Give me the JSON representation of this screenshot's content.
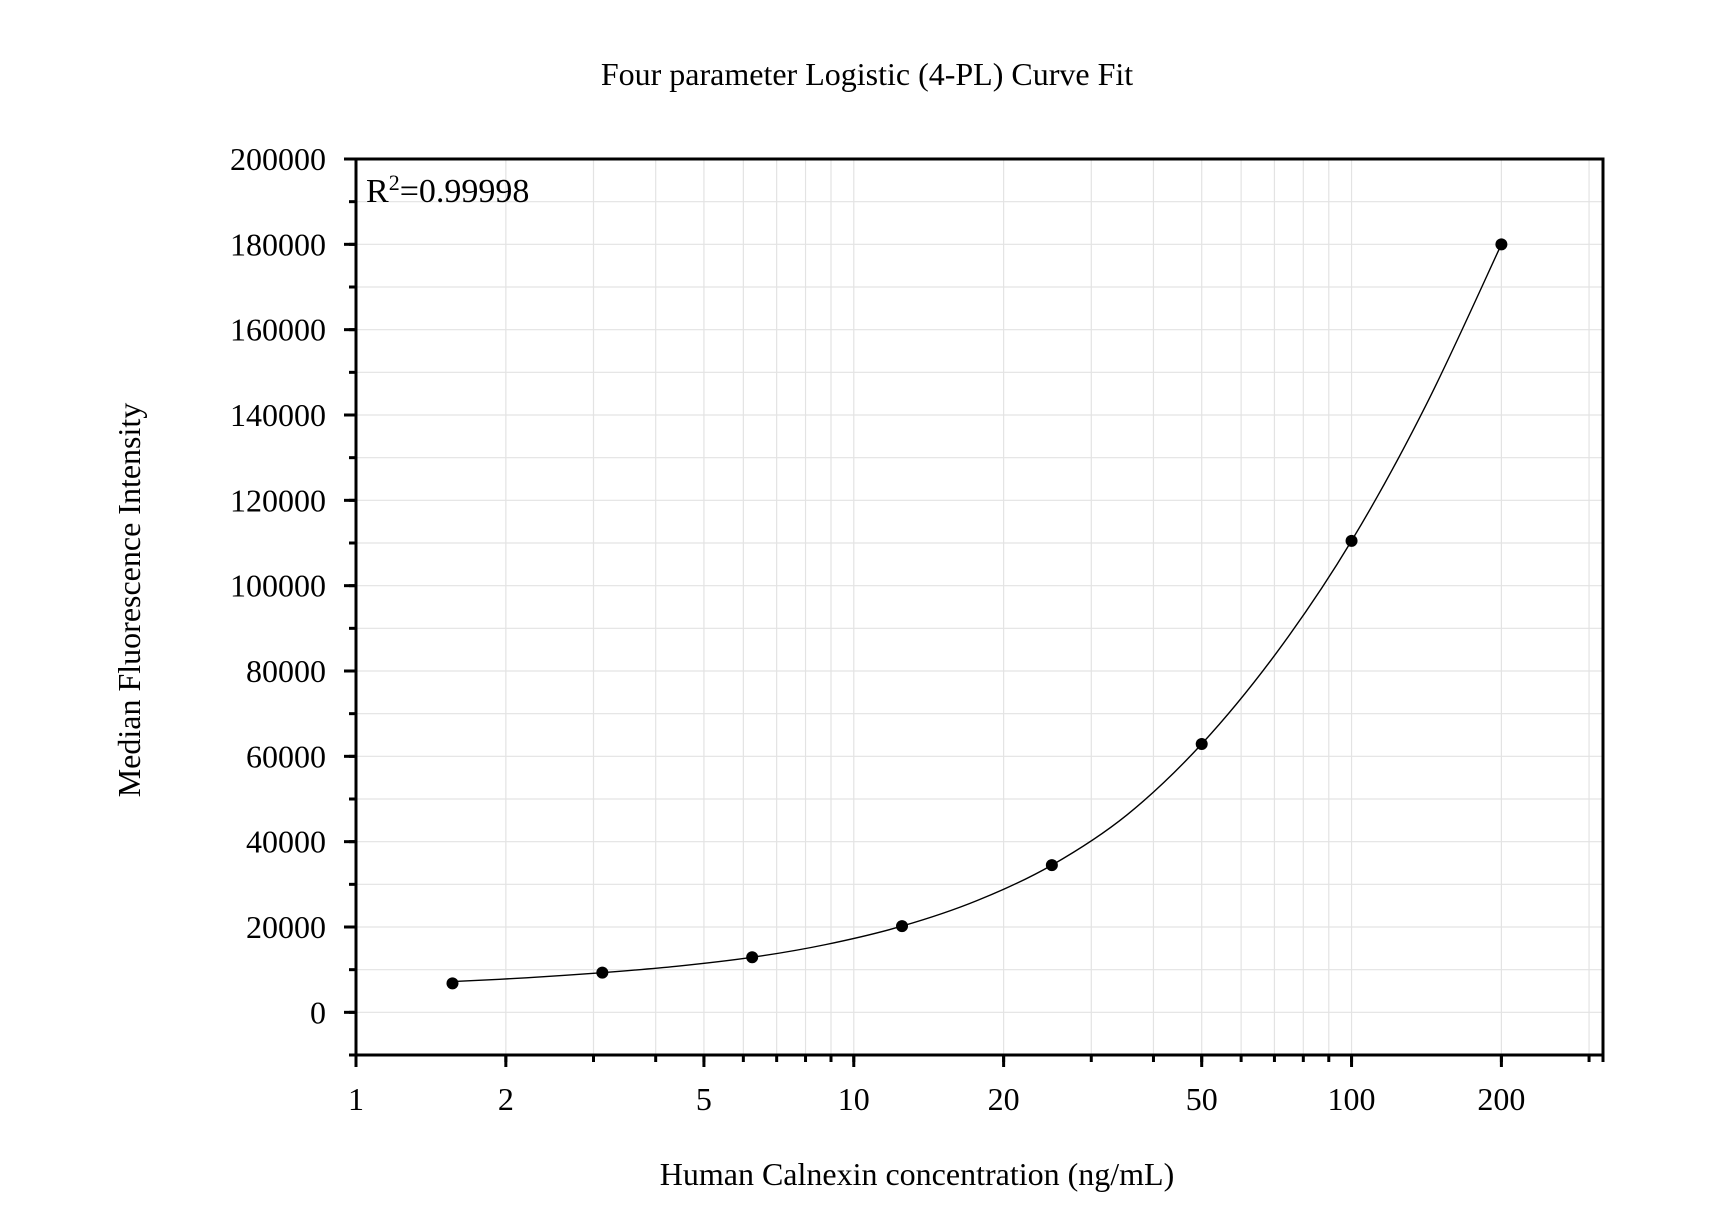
{
  "chart_data": {
    "type": "scatter",
    "title": "Four parameter Logistic (4-PL) Curve Fit",
    "xlabel": "Human Calnexin concentration (ng/mL)",
    "ylabel": "Median Fluorescence Intensity",
    "x_scale": "log",
    "xlim": [
      1,
      320
    ],
    "ylim": [
      -10000,
      200000
    ],
    "x_ticks": [
      1,
      2,
      5,
      10,
      20,
      50,
      100,
      200
    ],
    "x_tick_labels": [
      "1",
      "2",
      "5",
      "10",
      "20",
      "50",
      "100",
      "200"
    ],
    "y_ticks": [
      0,
      20000,
      40000,
      60000,
      80000,
      100000,
      120000,
      140000,
      160000,
      180000,
      200000
    ],
    "y_tick_labels": [
      "0",
      "20000",
      "40000",
      "60000",
      "80000",
      "100000",
      "120000",
      "140000",
      "160000",
      "180000",
      "200000"
    ],
    "grid": true,
    "annotation": {
      "prefix": "R",
      "superscript": "2",
      "suffix": "=0.99998"
    },
    "series": [
      {
        "points": [
          {
            "x": 1.5625,
            "y": 6800
          },
          {
            "x": 3.125,
            "y": 9300
          },
          {
            "x": 6.25,
            "y": 12900
          },
          {
            "x": 12.5,
            "y": 20200
          },
          {
            "x": 25,
            "y": 34500
          },
          {
            "x": 50,
            "y": 62900
          },
          {
            "x": 100,
            "y": 110500
          },
          {
            "x": 200,
            "y": 180000
          }
        ]
      }
    ],
    "fit_curve": [
      {
        "x": 1.5625,
        "y": 7200
      },
      {
        "x": 2.2,
        "y": 8100
      },
      {
        "x": 3.125,
        "y": 9300
      },
      {
        "x": 4.4,
        "y": 10800
      },
      {
        "x": 6.25,
        "y": 12900
      },
      {
        "x": 8.8,
        "y": 15900
      },
      {
        "x": 12.5,
        "y": 20200
      },
      {
        "x": 17.7,
        "y": 26200
      },
      {
        "x": 25,
        "y": 34500
      },
      {
        "x": 35.4,
        "y": 46300
      },
      {
        "x": 50,
        "y": 62900
      },
      {
        "x": 70.7,
        "y": 84300
      },
      {
        "x": 100,
        "y": 110500
      },
      {
        "x": 141.4,
        "y": 142500
      },
      {
        "x": 200,
        "y": 180000
      }
    ],
    "colors": {
      "points": "#000000",
      "curve": "#000000",
      "grid": "#e3e3e3",
      "frame": "#000000"
    }
  }
}
